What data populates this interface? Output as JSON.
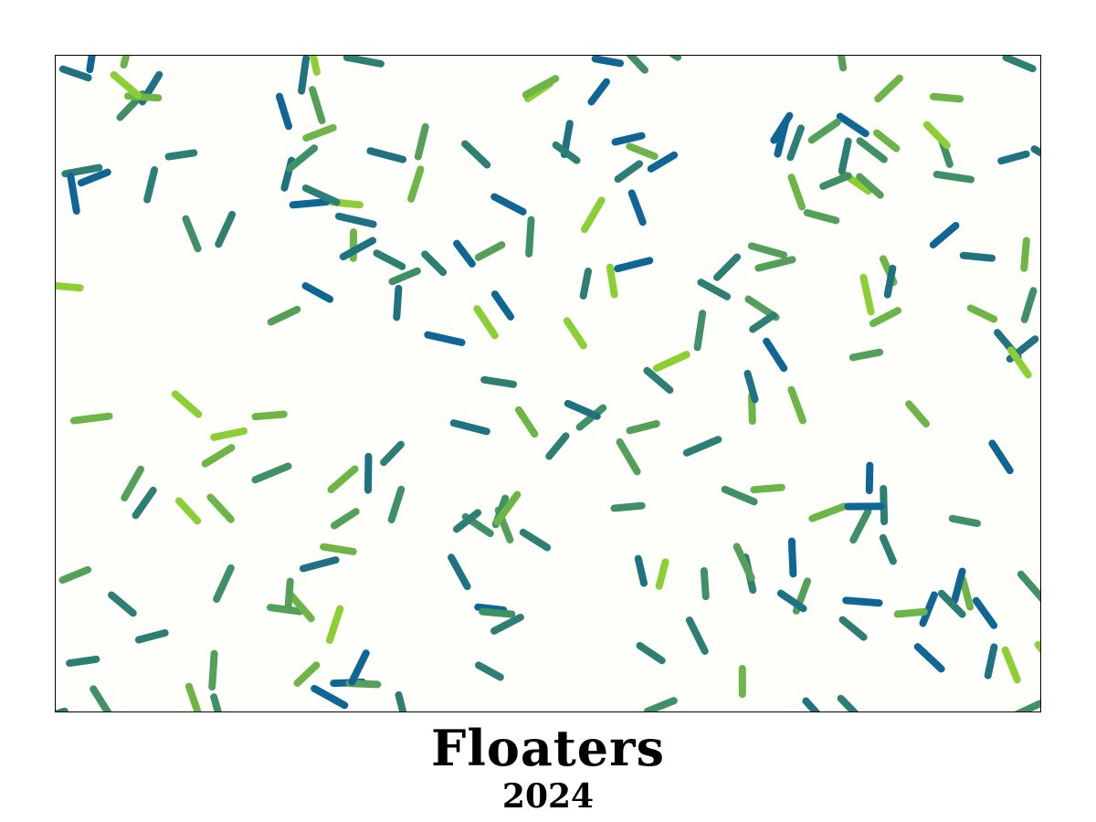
{
  "artwork": {
    "title": "Floaters",
    "year": "2024",
    "background_color": "#fefefb",
    "frame_color": "#000000",
    "palette": [
      "#8ccf35",
      "#6db546",
      "#54a05a",
      "#3f9066",
      "#2d7f73",
      "#1f7282",
      "#0f6694"
    ],
    "stroke_count": 210,
    "seed": 2024
  }
}
